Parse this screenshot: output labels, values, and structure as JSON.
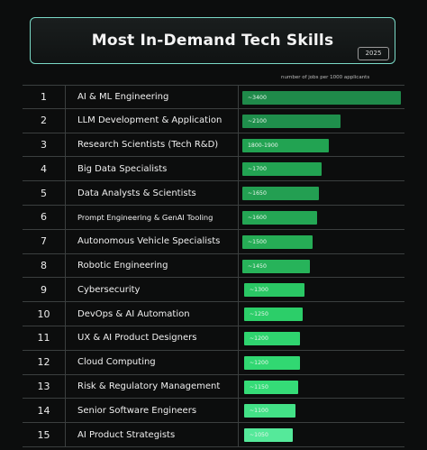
{
  "header": {
    "title": "Most In-Demand Tech Skills",
    "year": "2025"
  },
  "caption": "number of jobs per 1000 applicants",
  "chart_data": {
    "type": "bar",
    "orientation": "horizontal",
    "title": "Most In-Demand Tech Skills",
    "subtitle": "2025",
    "value_axis_label": "number of jobs per 1000 applicants",
    "ranks": [
      "1",
      "2",
      "3",
      "4",
      "5",
      "6",
      "7",
      "8",
      "9",
      "10",
      "11",
      "12",
      "13",
      "14",
      "15"
    ],
    "categories": [
      "AI & ML Engineering",
      "LLM Development & Application",
      "Research Scientists (Tech R&D)",
      "Big Data Specialists",
      "Data Analysts & Scientists",
      "Prompt Engineering & GenAI Tooling",
      "Autonomous Vehicle Specialists",
      "Robotic Engineering",
      "Cybersecurity",
      "DevOps & AI Automation",
      "UX & AI Product Designers",
      "Cloud Computing",
      "Risk & Regulatory Management",
      "Senior Software Engineers",
      "AI Product Strategists"
    ],
    "values": [
      3400,
      2100,
      1850,
      1700,
      1650,
      1600,
      1500,
      1450,
      1300,
      1250,
      1200,
      1200,
      1150,
      1100,
      1050
    ],
    "value_labels": [
      "~3400",
      "~2100",
      "1800-1900",
      "~1700",
      "~1650",
      "~1600",
      "~1500",
      "~1450",
      "~1300",
      "~1250",
      "~1200",
      "~1200",
      "~1150",
      "~1100",
      "~1050"
    ],
    "colors": [
      "#1f8a4a",
      "#1f8f4c",
      "#22a352",
      "#22a352",
      "#239f52",
      "#24a654",
      "#26ad56",
      "#27b35a",
      "#2ac764",
      "#2cce69",
      "#2fd46f",
      "#31d872",
      "#35dc77",
      "#43e287",
      "#55e99a"
    ],
    "grid": false
  }
}
